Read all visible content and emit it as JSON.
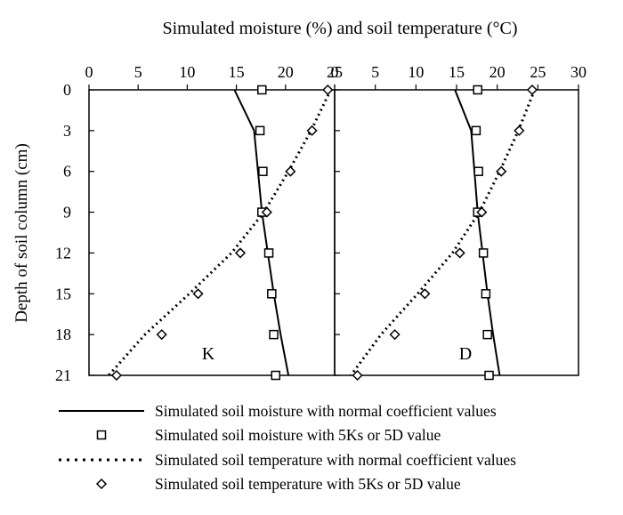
{
  "chart_data": {
    "type": "line",
    "title": "Simulated moisture (%) and soil temperature (°C)",
    "ylabel": "Depth of soil column (cm)",
    "y_direction": "depth increasing downward",
    "ylim": [
      0,
      21
    ],
    "yticks": [
      0,
      3,
      6,
      9,
      12,
      15,
      18,
      21
    ],
    "x_axis_position": "top",
    "grid": false,
    "legend_placement": "bottom",
    "panels": [
      {
        "panel_label": "K",
        "xlim": [
          0,
          25
        ],
        "xticks": [
          0,
          5,
          10,
          15,
          20,
          25
        ],
        "series": [
          {
            "name": "Simulated soil moisture with normal coefficient values",
            "style": "solid-line",
            "depth": [
              0,
              3,
              6,
              9,
              12,
              15,
              18,
              21
            ],
            "x": [
              14.8,
              16.8,
              17.2,
              17.6,
              18.2,
              18.8,
              19.5,
              20.3
            ]
          },
          {
            "name": "Simulated soil moisture with 5Ks or 5D value",
            "style": "square-marker",
            "depth": [
              0,
              3,
              6,
              9,
              12,
              15,
              18,
              21
            ],
            "x": [
              17.6,
              17.4,
              17.7,
              17.6,
              18.3,
              18.6,
              18.8,
              19.0
            ]
          },
          {
            "name": "Simulated soil temperature with normal coefficient values",
            "style": "dotted-line",
            "depth": [
              0,
              3,
              6,
              9,
              12,
              15,
              18,
              21
            ],
            "x": [
              24.6,
              22.6,
              20.3,
              17.8,
              14.5,
              10.2,
              5.7,
              2.0
            ]
          },
          {
            "name": "Simulated soil temperature with 5Ks or 5D value",
            "style": "diamond-marker",
            "depth": [
              0,
              3,
              6,
              9,
              12,
              15,
              18,
              21
            ],
            "x": [
              24.3,
              22.7,
              20.5,
              18.1,
              15.4,
              11.1,
              7.4,
              2.8
            ]
          }
        ]
      },
      {
        "panel_label": "D",
        "xlim": [
          0,
          30
        ],
        "xticks": [
          0,
          5,
          10,
          15,
          20,
          25,
          30
        ],
        "series": [
          {
            "name": "Simulated soil moisture with normal coefficient values",
            "style": "solid-line",
            "depth": [
              0,
              3,
              6,
              9,
              12,
              15,
              18,
              21
            ],
            "x": [
              14.8,
              16.8,
              17.2,
              17.6,
              18.2,
              18.8,
              19.5,
              20.3
            ]
          },
          {
            "name": "Simulated soil moisture with 5Ks or 5D value",
            "style": "square-marker",
            "depth": [
              0,
              3,
              6,
              9,
              12,
              15,
              18,
              21
            ],
            "x": [
              17.6,
              17.4,
              17.7,
              17.6,
              18.3,
              18.6,
              18.8,
              19.0
            ]
          },
          {
            "name": "Simulated soil temperature with normal coefficient values",
            "style": "dotted-line",
            "depth": [
              0,
              3,
              6,
              9,
              12,
              15,
              18,
              21
            ],
            "x": [
              24.6,
              22.6,
              20.3,
              17.8,
              14.5,
              10.2,
              5.7,
              2.0
            ]
          },
          {
            "name": "Simulated soil temperature with 5Ks or 5D value",
            "style": "diamond-marker",
            "depth": [
              0,
              3,
              6,
              9,
              12,
              15,
              18,
              21
            ],
            "x": [
              24.3,
              22.7,
              20.5,
              18.1,
              15.4,
              11.1,
              7.4,
              2.8
            ]
          }
        ]
      }
    ],
    "legend": [
      {
        "label": "Simulated soil moisture with normal coefficient values",
        "style": "solid-line"
      },
      {
        "label": "Simulated soil moisture with 5Ks or 5D value",
        "style": "square-marker"
      },
      {
        "label": "Simulated soil temperature with normal coefficient values",
        "style": "dotted-line"
      },
      {
        "label": "Simulated soil temperature with 5Ks or 5D value",
        "style": "diamond-marker"
      }
    ]
  }
}
